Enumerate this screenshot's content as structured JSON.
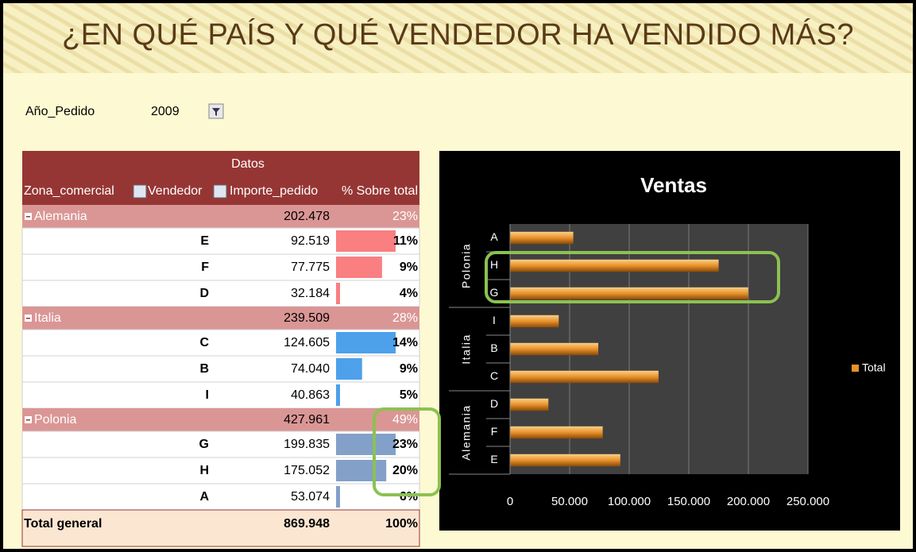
{
  "title": "¿EN QUÉ PAÍS Y  QUÉ VENDEDOR HA VENDIDO MÁS?",
  "filter": {
    "label": "Año_Pedido",
    "value": "2009"
  },
  "table": {
    "header": "Datos",
    "columns": [
      "Zona_comercial",
      "Vendedor",
      "Importe_pedido",
      "% Sobre total"
    ],
    "groups": [
      {
        "name": "Alemania",
        "importe": "202.478",
        "pct": "23%",
        "bar_color": "#f8696b",
        "rows": [
          [
            "E",
            "92.519",
            "11%"
          ],
          [
            "F",
            "77.775",
            "9%"
          ],
          [
            "D",
            "32.184",
            "4%"
          ]
        ]
      },
      {
        "name": "Italia",
        "importe": "239.509",
        "pct": "28%",
        "bar_color": "#2e8fe6",
        "rows": [
          [
            "C",
            "124.605",
            "14%"
          ],
          [
            "B",
            "74.040",
            "9%"
          ],
          [
            "I",
            "40.863",
            "5%"
          ]
        ]
      },
      {
        "name": "Polonia",
        "importe": "427.961",
        "pct": "49%",
        "bar_color": "#6d8fc0",
        "rows": [
          [
            "G",
            "199.835",
            "23%"
          ],
          [
            "H",
            "175.052",
            "20%"
          ],
          [
            "A",
            "53.074",
            "6%"
          ]
        ]
      }
    ],
    "total": [
      "Total general",
      "869.948",
      "100%"
    ]
  },
  "chart_data": {
    "type": "bar",
    "orientation": "horizontal",
    "title": "Ventas",
    "groups": [
      {
        "name": "Polonia",
        "categories": [
          "A",
          "H",
          "G"
        ]
      },
      {
        "name": "Italia",
        "categories": [
          "I",
          "B",
          "C"
        ]
      },
      {
        "name": "Alemania",
        "categories": [
          "D",
          "F",
          "E"
        ]
      }
    ],
    "series": [
      {
        "name": "Total",
        "color": "#e8912a",
        "values": [
          53074,
          175052,
          199835,
          40863,
          74040,
          124605,
          32184,
          77775,
          92519
        ]
      }
    ],
    "xlim": [
      0,
      250000
    ],
    "xticks": [
      0,
      {
        "value": 50000,
        "label": "50.000"
      },
      {
        "value": 100000,
        "label": "100.000"
      },
      {
        "value": 150000,
        "label": "150.000"
      },
      {
        "value": 200000,
        "label": "200.000"
      },
      {
        "value": 250000,
        "label": "250.000"
      }
    ],
    "grid": true,
    "legend": "right"
  }
}
